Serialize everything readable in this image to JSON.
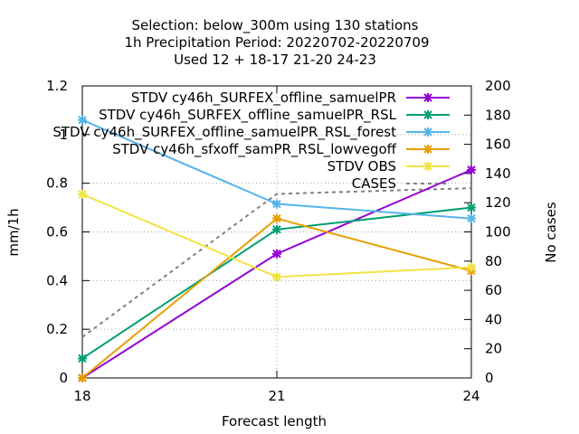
{
  "chart_data": {
    "type": "line",
    "title_lines": [
      "Selection: below_300m using    130 stations",
      "1h Precipitation    Period: 20220702-20220709",
      "Used  12 + 18-17 21-20 24-23"
    ],
    "xlabel": "Forecast length",
    "ylabel": "mm/1h",
    "y2label": "No cases",
    "x": [
      18,
      21,
      24
    ],
    "xticks": [
      "18",
      "21",
      "24"
    ],
    "ylim": [
      0,
      1.2
    ],
    "yticks": [
      "0",
      "0.2",
      "0.4",
      "0.6",
      "0.8",
      "1",
      "1.2"
    ],
    "y2lim": [
      0,
      200
    ],
    "y2ticks": [
      "0",
      "20",
      "40",
      "60",
      "80",
      "100",
      "120",
      "140",
      "160",
      "180",
      "200"
    ],
    "grid": true,
    "legend_position": "top-right",
    "series": [
      {
        "name": "STDV cy46h_SURFEX_offline_samuelPR",
        "legend_text": "STDV cy46h_SURFEX_offline_samuelPR",
        "color": "#9400d3",
        "values": [
          0.0,
          0.51,
          0.855
        ]
      },
      {
        "name": "STDV cy46h_SURFEX_offline_samuelPR_RSL",
        "legend_text": "STDV cy46h_SURFEX_offline_samuelPR_RSL",
        "color": "#009e73",
        "values": [
          0.08,
          0.61,
          0.7
        ]
      },
      {
        "name": "STDV cy46h_SURFEX_offline_samuelPR_RSL_forest",
        "legend_text": "STDV cy46h_SURFEX_offline_samuelPR_RSL_forest",
        "color": "#56b4e9",
        "values": [
          1.06,
          0.715,
          0.655
        ]
      },
      {
        "name": "STDV cy46h_sfxoff_samPR_RSL_lowvegoff",
        "legend_text": "STDV cy46h_sfxoff_samPR_RSL_lowvegoff",
        "color": "#e69f00",
        "values": [
          0.0,
          0.655,
          0.44
        ]
      },
      {
        "name": "STDV OBS",
        "legend_text": "STDV OBS",
        "color": "#f0e442",
        "values": [
          0.755,
          0.415,
          0.455
        ]
      }
    ],
    "cases": {
      "name": "CASES",
      "legend_text": "CASES",
      "color": "#808080",
      "values": [
        28,
        126,
        130
      ]
    }
  }
}
